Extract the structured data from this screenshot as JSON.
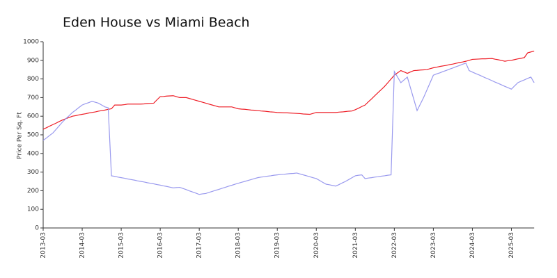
{
  "chart_data": {
    "type": "line",
    "title": "Eden House vs Miami Beach",
    "y_label": "Price Per Sq. Ft",
    "x": [
      "2013-03",
      "2013-04",
      "2013-05",
      "2013-06",
      "2013-07",
      "2013-08",
      "2013-09",
      "2013-10",
      "2013-11",
      "2013-12",
      "2014-01",
      "2014-02",
      "2014-03",
      "2014-04",
      "2014-05",
      "2014-06",
      "2014-07",
      "2014-08",
      "2014-09",
      "2014-10",
      "2014-11",
      "2014-12",
      "2015-01",
      "2015-02",
      "2015-03",
      "2015-04",
      "2015-05",
      "2015-06",
      "2015-07",
      "2015-08",
      "2015-09",
      "2015-10",
      "2015-11",
      "2015-12",
      "2016-01",
      "2016-02",
      "2016-03",
      "2016-04",
      "2016-05",
      "2016-06",
      "2016-07",
      "2016-08",
      "2016-09",
      "2016-10",
      "2016-11",
      "2016-12",
      "2017-01",
      "2017-02",
      "2017-03",
      "2017-04",
      "2017-05",
      "2017-06",
      "2017-07",
      "2017-08",
      "2017-09",
      "2017-10",
      "2017-11",
      "2017-12",
      "2018-01",
      "2018-02",
      "2018-03",
      "2018-04",
      "2018-05",
      "2018-06",
      "2018-07",
      "2018-08",
      "2018-09",
      "2018-10",
      "2018-11",
      "2018-12",
      "2019-01",
      "2019-02",
      "2019-03",
      "2019-04",
      "2019-05",
      "2019-06",
      "2019-07",
      "2019-08",
      "2019-09",
      "2019-10",
      "2019-11",
      "2019-12",
      "2020-01",
      "2020-02",
      "2020-03",
      "2020-04",
      "2020-05",
      "2020-06",
      "2020-07",
      "2020-08",
      "2020-09",
      "2020-10",
      "2020-11",
      "2020-12",
      "2021-01",
      "2021-02",
      "2021-03",
      "2021-04",
      "2021-05",
      "2021-06",
      "2021-07",
      "2021-08",
      "2021-09",
      "2021-10",
      "2021-11",
      "2021-12",
      "2022-01",
      "2022-02",
      "2022-03",
      "2022-04",
      "2022-05",
      "2022-06",
      "2022-07",
      "2022-08",
      "2022-09",
      "2022-10",
      "2022-11",
      "2022-12",
      "2023-01",
      "2023-02",
      "2023-03",
      "2023-04",
      "2023-05",
      "2023-06",
      "2023-07",
      "2023-08",
      "2023-09",
      "2023-10",
      "2023-11",
      "2023-12",
      "2024-01",
      "2024-02",
      "2024-03",
      "2024-04",
      "2024-05",
      "2024-06",
      "2024-07",
      "2024-08",
      "2024-09",
      "2024-10",
      "2024-11",
      "2024-12",
      "2025-01",
      "2025-02",
      "2025-03",
      "2025-04",
      "2025-05",
      "2025-06",
      "2025-07",
      "2025-08",
      "2025-09",
      "2025-10"
    ],
    "series": [
      {
        "color": "#ee1c25",
        "values": [
          530,
          538,
          547,
          555,
          563,
          572,
          580,
          587,
          593,
          600,
          603,
          607,
          610,
          613,
          617,
          620,
          623,
          627,
          630,
          633,
          637,
          640,
          660,
          660,
          660,
          662,
          665,
          665,
          665,
          665,
          665,
          666,
          668,
          669,
          670,
          688,
          705,
          706,
          708,
          709,
          710,
          705,
          700,
          700,
          700,
          695,
          690,
          685,
          680,
          675,
          670,
          665,
          660,
          655,
          650,
          650,
          650,
          650,
          650,
          645,
          640,
          638,
          637,
          635,
          633,
          632,
          630,
          628,
          627,
          625,
          623,
          622,
          620,
          619,
          618,
          618,
          617,
          616,
          615,
          614,
          612,
          611,
          610,
          615,
          620,
          620,
          620,
          620,
          620,
          620,
          620,
          622,
          623,
          625,
          627,
          628,
          635,
          643,
          652,
          660,
          677,
          693,
          710,
          727,
          743,
          760,
          780,
          800,
          820,
          833,
          845,
          838,
          830,
          838,
          845,
          846,
          848,
          849,
          850,
          855,
          860,
          863,
          867,
          870,
          873,
          877,
          880,
          884,
          888,
          891,
          895,
          900,
          905,
          906,
          907,
          908,
          908,
          909,
          910,
          906,
          903,
          899,
          895,
          898,
          900,
          904,
          908,
          911,
          915,
          940,
          945,
          950
        ]
      },
      {
        "color": "#9999ee",
        "values": [
          470,
          483,
          497,
          510,
          530,
          550,
          570,
          587,
          603,
          620,
          633,
          647,
          660,
          667,
          673,
          680,
          675,
          670,
          660,
          650,
          645,
          280,
          277,
          273,
          270,
          267,
          263,
          260,
          257,
          253,
          250,
          247,
          243,
          240,
          237,
          233,
          230,
          226,
          223,
          219,
          215,
          217,
          218,
          212,
          206,
          199,
          193,
          187,
          180,
          183,
          185,
          191,
          196,
          202,
          207,
          213,
          218,
          224,
          229,
          235,
          240,
          245,
          250,
          255,
          260,
          265,
          270,
          273,
          275,
          278,
          280,
          283,
          285,
          287,
          288,
          290,
          292,
          293,
          295,
          290,
          285,
          280,
          275,
          270,
          265,
          255,
          245,
          235,
          232,
          228,
          225,
          233,
          242,
          250,
          260,
          270,
          280,
          283,
          285,
          265,
          268,
          270,
          273,
          275,
          278,
          280,
          283,
          285,
          840,
          810,
          780,
          795,
          810,
          750,
          690,
          630,
          665,
          700,
          740,
          780,
          820,
          827,
          833,
          840,
          846,
          853,
          859,
          866,
          872,
          879,
          885,
          845,
          837,
          829,
          822,
          814,
          806,
          799,
          791,
          783,
          776,
          768,
          760,
          753,
          745,
          763,
          780,
          788,
          795,
          803,
          810,
          780
        ]
      }
    ],
    "xticks": [
      "2013-03",
      "2014-03",
      "2015-03",
      "2016-03",
      "2017-03",
      "2018-03",
      "2019-03",
      "2020-03",
      "2021-03",
      "2022-03",
      "2023-03",
      "2024-03",
      "2025-03"
    ],
    "ylim": [
      0,
      1000
    ],
    "yticks": [
      0,
      100,
      200,
      300,
      400,
      500,
      600,
      700,
      800,
      900,
      1000
    ]
  }
}
